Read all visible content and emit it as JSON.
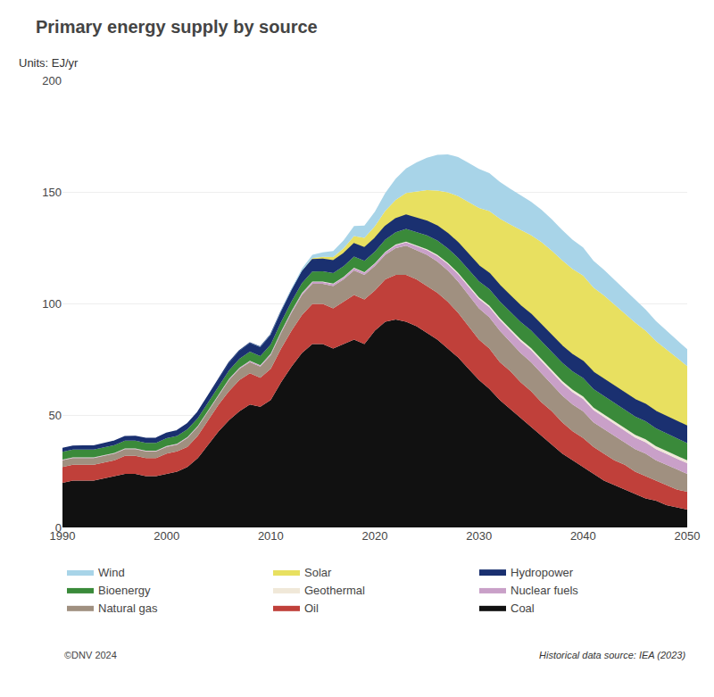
{
  "chart_data": {
    "type": "area",
    "stacked": true,
    "title": "Primary energy supply by source",
    "ylabel": "Units: EJ/yr",
    "annotations": [
      "Historical data source: IEA (2023)",
      "©DNV 2024"
    ],
    "x": [
      1990,
      1991,
      1992,
      1993,
      1994,
      1995,
      1996,
      1997,
      1998,
      1999,
      2000,
      2001,
      2002,
      2003,
      2004,
      2005,
      2006,
      2007,
      2008,
      2009,
      2010,
      2011,
      2012,
      2013,
      2014,
      2015,
      2016,
      2017,
      2018,
      2019,
      2020,
      2021,
      2022,
      2023,
      2024,
      2025,
      2026,
      2027,
      2028,
      2029,
      2030,
      2031,
      2032,
      2033,
      2034,
      2035,
      2036,
      2037,
      2038,
      2039,
      2040,
      2041,
      2042,
      2043,
      2044,
      2045,
      2046,
      2047,
      2048,
      2049,
      2050
    ],
    "xlim": [
      1990,
      2050
    ],
    "xticks": [
      1990,
      2000,
      2010,
      2020,
      2030,
      2040,
      2050
    ],
    "ylim": [
      0,
      200
    ],
    "yticks": [
      0,
      50,
      100,
      150,
      200
    ],
    "grid": true,
    "legend": "bottom",
    "series": [
      {
        "name": "Coal",
        "color": "#111111",
        "values": [
          20,
          21,
          21,
          21,
          22,
          23,
          24,
          24,
          23,
          23,
          24,
          25,
          27,
          31,
          37,
          43,
          48,
          52,
          55,
          54,
          57,
          65,
          72,
          78,
          82,
          82,
          80,
          82,
          84,
          82,
          88,
          92,
          93,
          92,
          90,
          87,
          84,
          80,
          76,
          71,
          66,
          62,
          57,
          53,
          49,
          45,
          41,
          37,
          33,
          30,
          27,
          24,
          21,
          19,
          17,
          15,
          13,
          12,
          10,
          9,
          8
        ]
      },
      {
        "name": "Oil",
        "color": "#c0403a",
        "values": [
          7,
          7,
          7,
          7,
          7,
          7,
          8,
          8,
          8,
          8,
          9,
          9,
          9,
          10,
          11,
          12,
          13,
          14,
          14,
          13,
          14,
          15,
          16,
          17,
          18,
          18,
          18,
          19,
          20,
          20,
          18,
          19,
          20,
          21,
          21,
          21,
          21,
          21,
          20,
          19,
          18,
          18,
          17,
          17,
          16,
          16,
          15,
          15,
          14,
          13,
          13,
          12,
          12,
          11,
          11,
          10,
          10,
          9,
          9,
          8,
          8
        ]
      },
      {
        "name": "Natural gas",
        "color": "#a09080",
        "values": [
          3,
          3,
          3,
          3,
          3,
          3,
          3,
          3,
          3,
          3,
          3,
          3,
          4,
          4,
          4,
          4,
          5,
          5,
          5,
          5,
          6,
          7,
          8,
          9,
          9,
          9,
          10,
          10,
          11,
          11,
          11,
          11,
          12,
          13,
          13,
          14,
          14,
          14,
          14,
          14,
          14,
          14,
          14,
          13,
          13,
          13,
          13,
          12,
          12,
          12,
          12,
          11,
          11,
          11,
          10,
          10,
          10,
          9,
          9,
          9,
          8
        ]
      },
      {
        "name": "Nuclear fuels",
        "color": "#c9a0c8",
        "values": [
          0.2,
          0.2,
          0.2,
          0.2,
          0.2,
          0.2,
          0.2,
          0.2,
          0.2,
          0.2,
          0.3,
          0.3,
          0.3,
          0.3,
          0.3,
          0.4,
          0.4,
          0.4,
          0.5,
          0.5,
          0.6,
          0.6,
          0.7,
          0.7,
          0.8,
          0.8,
          0.9,
          0.9,
          1.0,
          1.0,
          1.0,
          1.1,
          1.2,
          1.5,
          1.8,
          2.1,
          2.5,
          2.9,
          3.3,
          3.8,
          4.2,
          4.5,
          4.8,
          5.0,
          5.2,
          5.3,
          5.4,
          5.5,
          5.5,
          5.5,
          5.5,
          5.5,
          5.4,
          5.4,
          5.3,
          5.2,
          5.1,
          5.0,
          4.9,
          4.8,
          4.7
        ]
      },
      {
        "name": "Geothermal",
        "color": "#f0e8d8",
        "values": [
          0.1,
          0.1,
          0.1,
          0.1,
          0.1,
          0.1,
          0.1,
          0.1,
          0.1,
          0.1,
          0.1,
          0.1,
          0.1,
          0.1,
          0.1,
          0.1,
          0.1,
          0.1,
          0.1,
          0.1,
          0.1,
          0.1,
          0.1,
          0.2,
          0.2,
          0.2,
          0.2,
          0.2,
          0.2,
          0.2,
          0.2,
          0.2,
          0.3,
          0.3,
          0.4,
          0.4,
          0.5,
          0.5,
          0.6,
          0.6,
          0.7,
          0.7,
          0.8,
          0.8,
          0.9,
          0.9,
          1.0,
          1.0,
          1.0,
          1.1,
          1.1,
          1.1,
          1.2,
          1.2,
          1.2,
          1.2,
          1.3,
          1.3,
          1.3,
          1.3,
          1.3
        ]
      },
      {
        "name": "Bioenergy",
        "color": "#3a8a3a",
        "values": [
          3.5,
          3.5,
          3.5,
          3.5,
          3.5,
          3.5,
          3.5,
          3.5,
          3.5,
          3.5,
          3.5,
          3.5,
          3.5,
          3.5,
          3.6,
          3.7,
          3.8,
          3.9,
          4.0,
          4.0,
          4.1,
          4.2,
          4.3,
          4.4,
          4.5,
          4.6,
          4.7,
          4.8,
          5.0,
          5.1,
          5.2,
          5.4,
          5.5,
          5.7,
          5.9,
          6.1,
          6.3,
          6.5,
          6.7,
          7.0,
          7.2,
          7.4,
          7.5,
          7.7,
          7.8,
          7.9,
          8.0,
          8.1,
          8.2,
          8.2,
          8.3,
          8.3,
          8.3,
          8.3,
          8.2,
          8.2,
          8.1,
          8.0,
          7.9,
          7.8,
          7.7
        ]
      },
      {
        "name": "Hydropower",
        "color": "#1a3070",
        "values": [
          1.5,
          1.5,
          1.6,
          1.6,
          1.7,
          1.8,
          1.8,
          1.9,
          2.0,
          2.1,
          2.2,
          2.3,
          2.4,
          2.6,
          2.8,
          3.0,
          3.3,
          3.6,
          3.8,
          4.0,
          4.3,
          4.6,
          4.8,
          5.0,
          5.2,
          5.3,
          5.4,
          5.5,
          5.6,
          5.7,
          5.8,
          5.9,
          6.0,
          6.1,
          6.2,
          6.3,
          6.4,
          6.5,
          6.6,
          6.7,
          6.8,
          6.9,
          7.0,
          7.0,
          7.1,
          7.1,
          7.2,
          7.2,
          7.3,
          7.3,
          7.3,
          7.4,
          7.4,
          7.4,
          7.5,
          7.5,
          7.5,
          7.5,
          7.5,
          7.5,
          7.5
        ]
      },
      {
        "name": "Solar",
        "color": "#e8e060",
        "values": [
          0.0,
          0.0,
          0.0,
          0.0,
          0.0,
          0.0,
          0.0,
          0.0,
          0.0,
          0.0,
          0.0,
          0.0,
          0.0,
          0.0,
          0.0,
          0.0,
          0.0,
          0.0,
          0.0,
          0.0,
          0.1,
          0.2,
          0.3,
          0.5,
          0.8,
          1.2,
          1.8,
          2.5,
          3.5,
          4.5,
          5.5,
          7.0,
          8.5,
          10.0,
          12.0,
          14.0,
          16.0,
          18.5,
          21.0,
          23.5,
          26.0,
          28.0,
          30.0,
          32.0,
          34.0,
          35.5,
          37.0,
          38.0,
          38.5,
          38.5,
          38.5,
          38.0,
          37.5,
          36.5,
          35.5,
          34.5,
          33.0,
          31.5,
          30.0,
          28.5,
          27.0
        ]
      },
      {
        "name": "Wind",
        "color": "#a8d4e8",
        "values": [
          0.0,
          0.0,
          0.0,
          0.0,
          0.0,
          0.0,
          0.0,
          0.0,
          0.0,
          0.0,
          0.0,
          0.0,
          0.0,
          0.0,
          0.0,
          0.0,
          0.1,
          0.1,
          0.1,
          0.2,
          0.3,
          0.5,
          0.7,
          1.0,
          1.5,
          2.0,
          2.7,
          3.5,
          4.5,
          5.5,
          6.5,
          8.0,
          9.5,
          11.0,
          13.0,
          14.5,
          16.0,
          17.0,
          17.5,
          17.5,
          17.5,
          17.0,
          16.5,
          16.0,
          15.5,
          15.0,
          14.5,
          14.0,
          13.5,
          13.0,
          12.5,
          12.0,
          11.5,
          11.0,
          10.5,
          10.0,
          9.5,
          9.0,
          8.5,
          8.0,
          7.5
        ]
      }
    ]
  }
}
